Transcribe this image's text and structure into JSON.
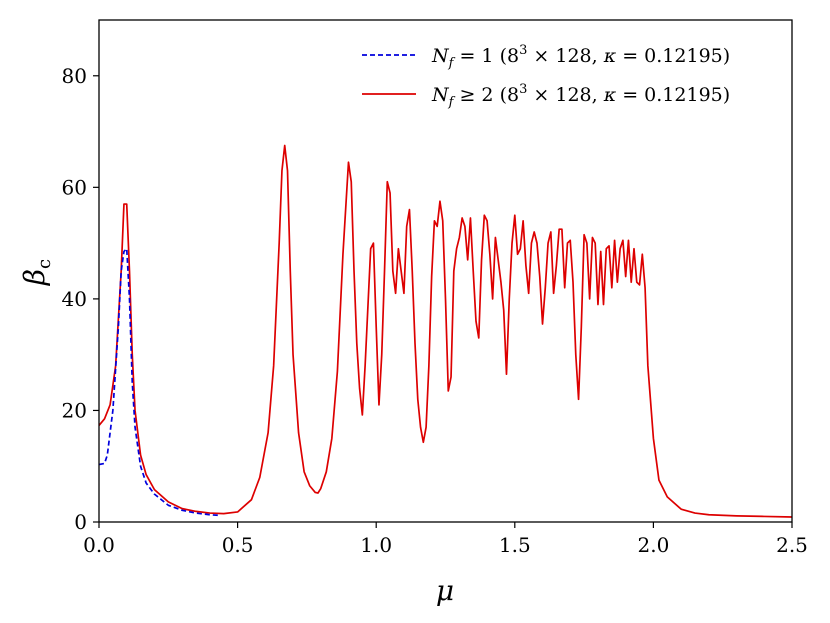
{
  "chart_data": {
    "type": "line",
    "xlabel": "μ",
    "ylabel": "β",
    "ylabel_sub": "c",
    "xlim": [
      0.0,
      2.5
    ],
    "ylim": [
      0,
      90
    ],
    "xticks": [
      "0.0",
      "0.5",
      "1.0",
      "1.5",
      "2.0",
      "2.5"
    ],
    "xtick_values": [
      0.0,
      0.5,
      1.0,
      1.5,
      2.0,
      2.5
    ],
    "yticks": [
      "0",
      "20",
      "40",
      "60",
      "80"
    ],
    "ytick_values": [
      0,
      20,
      40,
      60,
      80
    ],
    "grid": false,
    "legend_position": "top-right",
    "series": [
      {
        "name": "N_f = 1 (8^3 × 128, κ = 0.12195)",
        "legend": {
          "var": "N",
          "sub": "f",
          "rel": " = 1 (8",
          "sup": "3",
          "rest": " × 128, ",
          "kappa": "κ",
          "tail": " = 0.12195)"
        },
        "color": "#0000dd",
        "style": "dashed",
        "x": [
          0.0,
          0.02,
          0.03,
          0.05,
          0.07,
          0.08,
          0.09,
          0.1,
          0.11,
          0.12,
          0.13,
          0.15,
          0.17,
          0.2,
          0.25,
          0.3,
          0.35,
          0.4,
          0.43
        ],
        "y": [
          10.3,
          10.5,
          12,
          20,
          35,
          45,
          48.5,
          49,
          40,
          25,
          17,
          10,
          7,
          5,
          3,
          2.1,
          1.6,
          1.3,
          1.2
        ]
      },
      {
        "name": "N_f ≥ 2 (8^3 × 128, κ = 0.12195)",
        "legend": {
          "var": "N",
          "sub": "f",
          "rel": " ≥ 2 (8",
          "sup": "3",
          "rest": " × 128, ",
          "kappa": "κ",
          "tail": " = 0.12195)"
        },
        "color": "#dd0000",
        "style": "solid",
        "x": [
          0.0,
          0.02,
          0.04,
          0.06,
          0.08,
          0.09,
          0.1,
          0.11,
          0.12,
          0.13,
          0.15,
          0.17,
          0.2,
          0.25,
          0.3,
          0.35,
          0.4,
          0.45,
          0.5,
          0.55,
          0.58,
          0.61,
          0.63,
          0.65,
          0.66,
          0.67,
          0.68,
          0.69,
          0.7,
          0.72,
          0.74,
          0.76,
          0.78,
          0.79,
          0.8,
          0.82,
          0.84,
          0.86,
          0.88,
          0.9,
          0.91,
          0.92,
          0.93,
          0.94,
          0.95,
          0.96,
          0.98,
          0.99,
          1.0,
          1.01,
          1.02,
          1.03,
          1.04,
          1.05,
          1.06,
          1.07,
          1.08,
          1.09,
          1.1,
          1.11,
          1.12,
          1.13,
          1.14,
          1.15,
          1.16,
          1.17,
          1.18,
          1.19,
          1.2,
          1.21,
          1.22,
          1.23,
          1.24,
          1.25,
          1.26,
          1.27,
          1.28,
          1.29,
          1.3,
          1.31,
          1.32,
          1.33,
          1.34,
          1.35,
          1.36,
          1.37,
          1.38,
          1.39,
          1.4,
          1.41,
          1.42,
          1.43,
          1.44,
          1.45,
          1.46,
          1.47,
          1.48,
          1.49,
          1.5,
          1.51,
          1.52,
          1.53,
          1.54,
          1.55,
          1.56,
          1.57,
          1.58,
          1.59,
          1.6,
          1.61,
          1.62,
          1.63,
          1.64,
          1.65,
          1.66,
          1.67,
          1.68,
          1.69,
          1.7,
          1.71,
          1.72,
          1.73,
          1.74,
          1.75,
          1.76,
          1.77,
          1.78,
          1.79,
          1.8,
          1.81,
          1.82,
          1.83,
          1.84,
          1.85,
          1.86,
          1.87,
          1.88,
          1.89,
          1.9,
          1.91,
          1.92,
          1.93,
          1.94,
          1.95,
          1.96,
          1.97,
          1.98,
          2.0,
          2.02,
          2.05,
          2.1,
          2.15,
          2.2,
          2.3,
          2.4,
          2.5
        ],
        "y": [
          17.3,
          18.5,
          21,
          28,
          45,
          57,
          57,
          45,
          30,
          20,
          12,
          8.5,
          5.8,
          3.6,
          2.4,
          1.9,
          1.6,
          1.5,
          1.8,
          4,
          8,
          16,
          28,
          50,
          63,
          67.5,
          63,
          45,
          30,
          16,
          9,
          6.5,
          5.3,
          5.2,
          6,
          9,
          15,
          27,
          48,
          64.5,
          61,
          45,
          32,
          24,
          19.2,
          28,
          49,
          50,
          35,
          21,
          30,
          45,
          61,
          59,
          45,
          41,
          49,
          45,
          41,
          53,
          56,
          45,
          32,
          22,
          17,
          14.3,
          17,
          28,
          44,
          54,
          53,
          57.5,
          54,
          40,
          23.5,
          26,
          45,
          49,
          51,
          54.5,
          53,
          47,
          54.5,
          45,
          36,
          33,
          47,
          55,
          54,
          48,
          40,
          51,
          47,
          43,
          38,
          26.5,
          40,
          50,
          55,
          48,
          49,
          54,
          46,
          41,
          50,
          52,
          50,
          44,
          35.5,
          42,
          50,
          52,
          41,
          46,
          52.5,
          52.5,
          42,
          50,
          50.5,
          43,
          30,
          22,
          35,
          51.5,
          50,
          40,
          51,
          50,
          39,
          48.5,
          39,
          49,
          49.5,
          42,
          50.5,
          43,
          49,
          50.5,
          44,
          50.5,
          43,
          49,
          43,
          42.5,
          48,
          42,
          28,
          15,
          7.5,
          4.5,
          2.3,
          1.6,
          1.3,
          1.1,
          1.0,
          0.9
        ]
      }
    ]
  }
}
